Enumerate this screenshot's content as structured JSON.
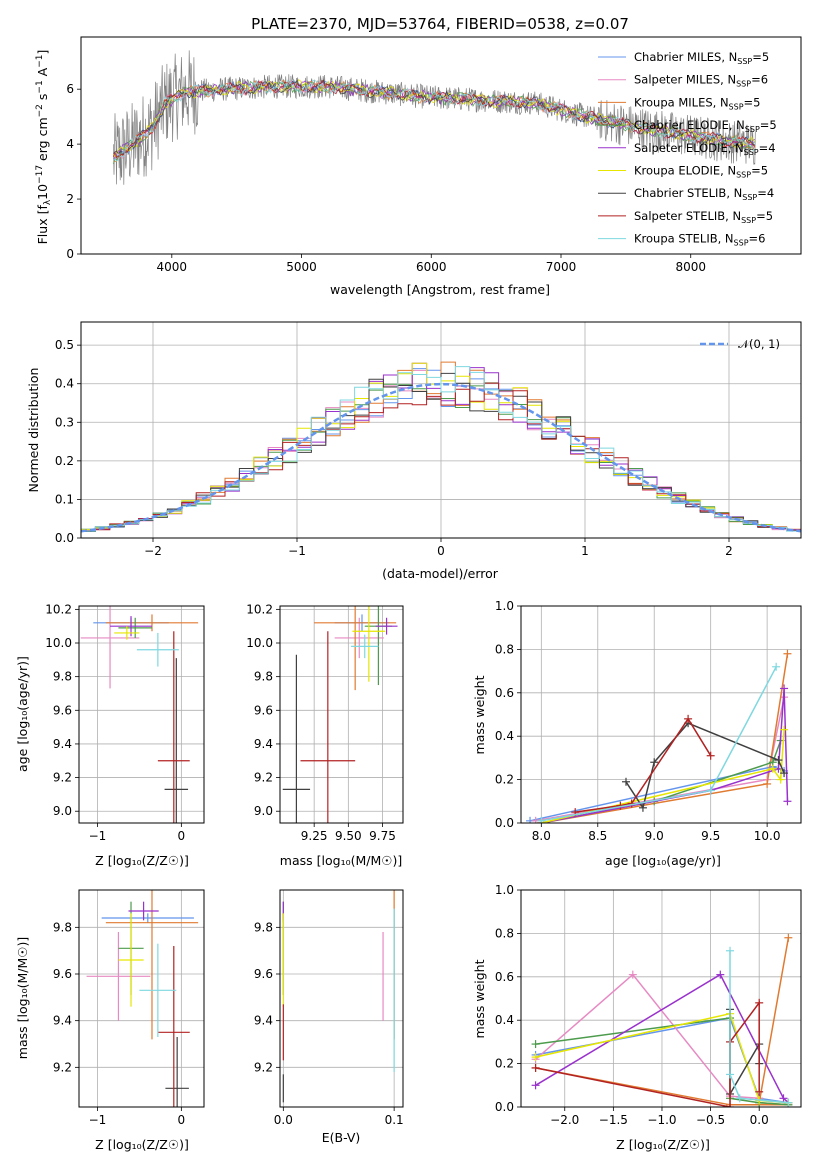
{
  "chart_data": [
    {
      "id": "spectrum",
      "type": "line",
      "title": "PLATE=2370, MJD=53764, FIBERID=0538, z=0.07",
      "xlabel": "wavelength [Angstrom, rest frame]",
      "ylabel_parts": [
        "Flux [f",
        "λ",
        "10",
        "−17",
        " erg cm",
        "−2",
        " s",
        "−1",
        " A",
        "−1",
        "]"
      ],
      "xlim": [
        3300,
        8850
      ],
      "ylim": [
        0,
        7.9
      ],
      "xticks": [
        4000,
        5000,
        6000,
        7000,
        8000
      ],
      "yticks": [
        0,
        2,
        4,
        6
      ],
      "legend_position": "upper right",
      "data_color": "#808080",
      "continuum": [
        {
          "x": 3550,
          "y": 3.5
        },
        {
          "x": 3700,
          "y": 4.0
        },
        {
          "x": 3850,
          "y": 4.6
        },
        {
          "x": 3950,
          "y": 5.5
        },
        {
          "x": 4100,
          "y": 5.9
        },
        {
          "x": 4400,
          "y": 6.0
        },
        {
          "x": 4800,
          "y": 6.1
        },
        {
          "x": 5200,
          "y": 6.1
        },
        {
          "x": 5600,
          "y": 5.9
        },
        {
          "x": 6000,
          "y": 5.7
        },
        {
          "x": 6400,
          "y": 5.6
        },
        {
          "x": 6800,
          "y": 5.5
        },
        {
          "x": 7200,
          "y": 5.0
        },
        {
          "x": 7600,
          "y": 4.6
        },
        {
          "x": 8000,
          "y": 4.3
        },
        {
          "x": 8300,
          "y": 4.1
        },
        {
          "x": 8500,
          "y": 4.0
        }
      ],
      "series": [
        {
          "name": "Chabrier MILES",
          "nssp": "5",
          "color": "#6495ed"
        },
        {
          "name": "Salpeter MILES",
          "nssp": "6",
          "color": "#e78ac3"
        },
        {
          "name": "Kroupa MILES",
          "nssp": "5",
          "color": "#e07a30"
        },
        {
          "name": "Chabrier ELODIE",
          "nssp": "5",
          "color": "#4d9b4d"
        },
        {
          "name": "Salpeter ELODIE",
          "nssp": "4",
          "color": "#9932cc"
        },
        {
          "name": "Kroupa ELODIE",
          "nssp": "5",
          "color": "#e6e600"
        },
        {
          "name": "Chabrier STELIB",
          "nssp": "4",
          "color": "#404040"
        },
        {
          "name": "Salpeter STELIB",
          "nssp": "5",
          "color": "#b22222"
        },
        {
          "name": "Kroupa STELIB",
          "nssp": "6",
          "color": "#7fd8e0"
        }
      ],
      "legend_sub": "SSP",
      "legend_prefix": "N"
    },
    {
      "id": "residual-histogram",
      "type": "step",
      "xlabel": "(data-model)/error",
      "ylabel": "Normed distribution",
      "xlim": [
        -2.5,
        2.5
      ],
      "ylim": [
        0,
        0.56
      ],
      "xticks": [
        -2,
        -1,
        0,
        1,
        2
      ],
      "yticks": [
        0.0,
        0.1,
        0.2,
        0.3,
        0.4,
        0.5
      ],
      "legend_label": "𝒩(0, 1)",
      "legend_position": "upper right",
      "reference_color": "#6495ed",
      "bin_width": 0.1,
      "grid": true
    },
    {
      "id": "age-vs-z",
      "type": "errorbar",
      "xlabel": "Z [log₁₀(Z/Z☉)]",
      "ylabel": "age  [log₁₀(age/yr)]",
      "xlim": [
        -1.22,
        0.27
      ],
      "ylim": [
        8.93,
        10.22
      ],
      "xticks": [
        -1,
        0
      ],
      "yticks": [
        9.0,
        9.2,
        9.4,
        9.6,
        9.8,
        10.0,
        10.2
      ],
      "points": [
        {
          "x": -0.6,
          "y": 10.12,
          "xerr": 0.45,
          "yerr": 0.03,
          "color": "#6495ed"
        },
        {
          "x": -0.85,
          "y": 10.03,
          "xerr": 0.35,
          "yerr": 0.3,
          "color": "#e78ac3"
        },
        {
          "x": -0.35,
          "y": 10.12,
          "xerr": 0.55,
          "yerr": 0.05,
          "color": "#e07a30"
        },
        {
          "x": -0.55,
          "y": 10.09,
          "xerr": 0.2,
          "yerr": 0.06,
          "color": "#4d9b4d"
        },
        {
          "x": -0.6,
          "y": 10.1,
          "xerr": 0.25,
          "yerr": 0.06,
          "color": "#9932cc"
        },
        {
          "x": -0.65,
          "y": 10.06,
          "xerr": 0.15,
          "yerr": 0.04,
          "color": "#e6e600"
        },
        {
          "x": -0.06,
          "y": 9.13,
          "xerr": 0.14,
          "yerr": 0.78,
          "color": "#404040"
        },
        {
          "x": -0.09,
          "y": 9.3,
          "xerr": 0.19,
          "yerr": 0.77,
          "color": "#b22222"
        },
        {
          "x": -0.28,
          "y": 9.96,
          "xerr": 0.25,
          "yerr": 0.1,
          "color": "#7fd8e0"
        }
      ]
    },
    {
      "id": "age-vs-mass",
      "type": "errorbar",
      "xlabel": "mass [log₁₀(M/M☉)]",
      "ylabel": "",
      "xlim": [
        9.0,
        9.9
      ],
      "ylim": [
        8.93,
        10.22
      ],
      "xticks": [
        9.25,
        9.5,
        9.75
      ],
      "xticklabels": [
        "9.25",
        "9.50",
        "9.75"
      ],
      "yticks": [
        9.0,
        9.2,
        9.4,
        9.6,
        9.8,
        10.0,
        10.2
      ],
      "points": [
        {
          "x": 9.6,
          "y": 10.12,
          "xerr": 0.2,
          "yerr": 0.05,
          "color": "#6495ed"
        },
        {
          "x": 9.58,
          "y": 10.03,
          "xerr": 0.18,
          "yerr": 0.12,
          "color": "#e78ac3"
        },
        {
          "x": 9.55,
          "y": 10.12,
          "xerr": 0.3,
          "yerr": 0.4,
          "color": "#e07a30"
        },
        {
          "x": 9.72,
          "y": 10.1,
          "xerr": 0.1,
          "yerr": 0.35,
          "color": "#4d9b4d"
        },
        {
          "x": 9.78,
          "y": 10.1,
          "xerr": 0.08,
          "yerr": 0.05,
          "color": "#9932cc"
        },
        {
          "x": 9.65,
          "y": 10.07,
          "xerr": 0.12,
          "yerr": 0.3,
          "color": "#e6e600"
        },
        {
          "x": 9.12,
          "y": 9.13,
          "xerr": 0.1,
          "yerr": 0.8,
          "color": "#404040"
        },
        {
          "x": 9.35,
          "y": 9.3,
          "xerr": 0.2,
          "yerr": 0.77,
          "color": "#b22222"
        },
        {
          "x": 9.62,
          "y": 9.98,
          "xerr": 0.1,
          "yerr": 0.07,
          "color": "#7fd8e0"
        }
      ]
    },
    {
      "id": "mass-weight-vs-age",
      "type": "line",
      "xlabel": "age  [log₁₀(age/yr)]",
      "ylabel": "mass weight",
      "xlim": [
        7.82,
        10.3
      ],
      "ylim": [
        0,
        1.0
      ],
      "xticks": [
        8.0,
        8.5,
        9.0,
        9.5,
        10.0
      ],
      "yticks": [
        0.0,
        0.2,
        0.4,
        0.6,
        0.8,
        1.0
      ],
      "grid": true,
      "series": [
        {
          "name": "Chabrier MILES",
          "color": "#6495ed",
          "x": [
            7.9,
            10.05,
            10.15
          ],
          "y": [
            0.01,
            0.26,
            0.24
          ]
        },
        {
          "name": "Salpeter MILES",
          "color": "#e78ac3",
          "x": [
            7.95,
            10.0,
            10.15
          ],
          "y": [
            0.01,
            0.2,
            0.58
          ]
        },
        {
          "name": "Kroupa MILES",
          "color": "#e07a30",
          "x": [
            8.0,
            10.0,
            10.18
          ],
          "y": [
            0.0,
            0.18,
            0.78
          ]
        },
        {
          "name": "Chabrier ELODIE",
          "color": "#4d9b4d",
          "x": [
            8.0,
            9.0,
            10.05,
            10.12
          ],
          "y": [
            0.0,
            0.1,
            0.28,
            0.38
          ]
        },
        {
          "name": "Salpeter ELODIE",
          "color": "#9932cc",
          "x": [
            8.0,
            9.5,
            10.1,
            10.15,
            10.18
          ],
          "y": [
            0.0,
            0.15,
            0.25,
            0.62,
            0.1
          ]
        },
        {
          "name": "Kroupa ELODIE",
          "color": "#e6e600",
          "x": [
            8.0,
            10.05,
            10.12,
            10.15
          ],
          "y": [
            0.0,
            0.25,
            0.2,
            0.43
          ]
        },
        {
          "name": "Chabrier STELIB",
          "color": "#404040",
          "x": [
            8.75,
            8.9,
            9.0,
            9.3,
            10.1,
            10.15
          ],
          "y": [
            0.19,
            0.07,
            0.28,
            0.46,
            0.29,
            0.23
          ]
        },
        {
          "name": "Salpeter STELIB",
          "color": "#b22222",
          "x": [
            8.3,
            8.7,
            8.8,
            9.3,
            9.5
          ],
          "y": [
            0.05,
            0.08,
            0.09,
            0.48,
            0.31
          ]
        },
        {
          "name": "Kroupa STELIB",
          "color": "#7fd8e0",
          "x": [
            8.0,
            9.5,
            10.08
          ],
          "y": [
            0.01,
            0.15,
            0.72
          ]
        }
      ]
    },
    {
      "id": "mass-vs-z",
      "type": "errorbar",
      "xlabel": "Z [log₁₀(Z/Z☉)]",
      "ylabel": "mass [log₁₀(M/M☉)]",
      "xlim": [
        -1.22,
        0.27
      ],
      "ylim": [
        9.03,
        9.96
      ],
      "xticks": [
        -1,
        0
      ],
      "yticks": [
        9.2,
        9.4,
        9.6,
        9.8
      ],
      "points": [
        {
          "x": -0.4,
          "y": 9.84,
          "xerr": 0.55,
          "yerr": 0.02,
          "color": "#6495ed"
        },
        {
          "x": -0.75,
          "y": 9.59,
          "xerr": 0.38,
          "yerr": 0.19,
          "color": "#e78ac3"
        },
        {
          "x": -0.35,
          "y": 9.82,
          "xerr": 0.55,
          "yerr": 0.5,
          "color": "#e07a30"
        },
        {
          "x": -0.6,
          "y": 9.71,
          "xerr": 0.15,
          "yerr": 0.2,
          "color": "#4d9b4d"
        },
        {
          "x": -0.45,
          "y": 9.87,
          "xerr": 0.18,
          "yerr": 0.04,
          "color": "#9932cc"
        },
        {
          "x": -0.6,
          "y": 9.66,
          "xerr": 0.15,
          "yerr": 0.2,
          "color": "#e6e600"
        },
        {
          "x": -0.05,
          "y": 9.11,
          "xerr": 0.14,
          "yerr": 0.22,
          "color": "#404040"
        },
        {
          "x": -0.09,
          "y": 9.35,
          "xerr": 0.19,
          "yerr": 0.37,
          "color": "#b22222"
        },
        {
          "x": -0.28,
          "y": 9.53,
          "xerr": 0.22,
          "yerr": 0.2,
          "color": "#7fd8e0"
        }
      ]
    },
    {
      "id": "mass-vs-ebv",
      "type": "errorbar",
      "xlabel": "E(B-V)",
      "ylabel": "",
      "xlim": [
        -0.003,
        0.108
      ],
      "ylim": [
        9.03,
        9.96
      ],
      "xticks": [
        0.0,
        0.1
      ],
      "yticks": [
        9.2,
        9.4,
        9.6,
        9.8
      ],
      "points": [
        {
          "x": 0.0,
          "y": 9.84,
          "xerr": 0.0,
          "yerr": 0.02,
          "color": "#6495ed"
        },
        {
          "x": 0.09,
          "y": 9.59,
          "xerr": 0.0,
          "yerr": 0.19,
          "color": "#e78ac3"
        },
        {
          "x": 0.1,
          "y": 9.82,
          "xerr": 0.0,
          "yerr": 0.5,
          "color": "#e07a30"
        },
        {
          "x": 0.0,
          "y": 9.71,
          "xerr": 0.0,
          "yerr": 0.2,
          "color": "#4d9b4d"
        },
        {
          "x": 0.0,
          "y": 9.87,
          "xerr": 0.0,
          "yerr": 0.04,
          "color": "#9932cc"
        },
        {
          "x": 0.0,
          "y": 9.66,
          "xerr": 0.0,
          "yerr": 0.2,
          "color": "#e6e600"
        },
        {
          "x": 0.0,
          "y": 9.11,
          "xerr": 0.0,
          "yerr": 0.06,
          "color": "#404040"
        },
        {
          "x": 0.0,
          "y": 9.35,
          "xerr": 0.0,
          "yerr": 0.12,
          "color": "#b22222"
        },
        {
          "x": 0.1,
          "y": 9.53,
          "xerr": 0.0,
          "yerr": 0.35,
          "color": "#7fd8e0"
        }
      ]
    },
    {
      "id": "mass-weight-vs-z",
      "type": "line",
      "xlabel": "Z [log₁₀(Z/Z☉)]",
      "ylabel": "mass weight",
      "xlim": [
        -2.45,
        0.43
      ],
      "ylim": [
        0,
        1.0
      ],
      "xticks": [
        -2.0,
        -1.5,
        -1.0,
        -0.5,
        0.0
      ],
      "xticklabels": [
        "−2.0",
        "−1.5",
        "−1.0",
        "−0.5",
        "0.0"
      ],
      "yticks": [
        0.0,
        0.2,
        0.4,
        0.6,
        0.8,
        1.0
      ],
      "grid": true,
      "series": [
        {
          "name": "Chabrier MILES",
          "color": "#6495ed",
          "x": [
            -2.3,
            -0.3,
            0.0,
            0.3
          ],
          "y": [
            0.24,
            0.41,
            0.04,
            0.02
          ]
        },
        {
          "name": "Salpeter MILES",
          "color": "#e78ac3",
          "x": [
            -2.3,
            -1.3,
            -0.3,
            0.0
          ],
          "y": [
            0.22,
            0.61,
            0.05,
            0.04
          ]
        },
        {
          "name": "Kroupa MILES",
          "color": "#e07a30",
          "x": [
            -2.3,
            -0.3,
            0.3,
            0.0,
            0.3
          ],
          "y": [
            0.18,
            0.01,
            0.01,
            0.02,
            0.78
          ]
        },
        {
          "name": "Chabrier ELODIE",
          "color": "#4d9b4d",
          "x": [
            -2.3,
            -0.3,
            -0.3,
            0.0,
            0.3
          ],
          "y": [
            0.29,
            0.41,
            0.04,
            0.02,
            0.01
          ]
        },
        {
          "name": "Salpeter ELODIE",
          "color": "#9932cc",
          "x": [
            -2.3,
            -0.4,
            0.25,
            0.3
          ],
          "y": [
            0.1,
            0.61,
            0.04,
            0.02
          ]
        },
        {
          "name": "Kroupa ELODIE",
          "color": "#e6e600",
          "x": [
            -2.3,
            -0.3,
            0.0,
            0.3
          ],
          "y": [
            0.23,
            0.43,
            0.03,
            0.02
          ]
        },
        {
          "name": "Chabrier STELIB",
          "color": "#404040",
          "x": [
            -0.3,
            -0.3,
            0.0,
            0.0
          ],
          "y": [
            0.45,
            0.06,
            0.29,
            0.2
          ]
        },
        {
          "name": "Salpeter STELIB",
          "color": "#b22222",
          "x": [
            -2.3,
            -0.3,
            -0.3,
            0.0,
            0.0
          ],
          "y": [
            0.18,
            0.0,
            0.3,
            0.48,
            0.07
          ]
        },
        {
          "name": "Kroupa STELIB",
          "color": "#7fd8e0",
          "x": [
            -0.3,
            -0.3,
            -0.2,
            0.3
          ],
          "y": [
            0.72,
            0.15,
            0.04,
            0.02
          ]
        }
      ]
    }
  ]
}
